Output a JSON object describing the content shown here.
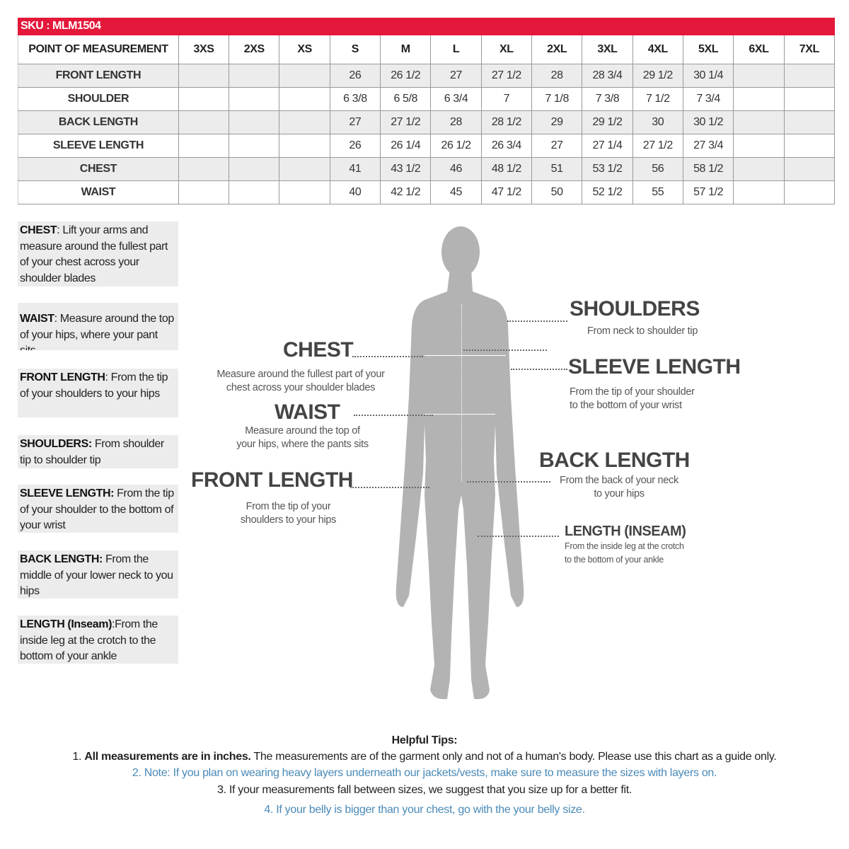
{
  "sku": "SKU : MLM1504",
  "table": {
    "header": [
      "POINT OF MEASUREMENT",
      "3XS",
      "2XS",
      "XS",
      "S",
      "M",
      "L",
      "XL",
      "2XL",
      "3XL",
      "4XL",
      "5XL",
      "6XL",
      "7XL"
    ],
    "rows": [
      [
        "FRONT LENGTH",
        "",
        "",
        "",
        "26",
        "26 1/2",
        "27",
        "27 1/2",
        "28",
        "28 3/4",
        "29 1/2",
        "30 1/4",
        "",
        ""
      ],
      [
        "SHOULDER",
        "",
        "",
        "",
        "6 3/8",
        "6 5/8",
        "6 3/4",
        "7",
        "7 1/8",
        "7 3/8",
        "7 1/2",
        "7 3/4",
        "",
        ""
      ],
      [
        "BACK LENGTH",
        "",
        "",
        "",
        "27",
        "27 1/2",
        "28",
        "28 1/2",
        "29",
        "29 1/2",
        "30",
        "30 1/2",
        "",
        ""
      ],
      [
        "SLEEVE LENGTH",
        "",
        "",
        "",
        "26",
        "26 1/4",
        "26 1/2",
        "26 3/4",
        "27",
        "27 1/4",
        "27 1/2",
        "27 3/4",
        "",
        ""
      ],
      [
        "CHEST",
        "",
        "",
        "",
        "41",
        "43 1/2",
        "46",
        "48 1/2",
        "51",
        "53 1/2",
        "56",
        "58 1/2",
        "",
        ""
      ],
      [
        "WAIST",
        "",
        "",
        "",
        "40",
        "42 1/2",
        "45",
        "47 1/2",
        "50",
        "52 1/2",
        "55",
        "57 1/2",
        "",
        ""
      ]
    ]
  },
  "notes": [
    {
      "label": "CHEST",
      "text": ": Lift your arms  and measure around the fullest part of your chest across your shoulder blades"
    },
    {
      "label": "WAIST",
      "text": ":  Measure around the top of your hips, where your pant sits"
    },
    {
      "label": "FRONT LENGTH",
      "text": ": From the tip of your shoulders to your hips"
    },
    {
      "label": "SHOULDERS:",
      "text": " From shoulder tip to shoulder tip"
    },
    {
      "label": "SLEEVE LENGTH:",
      "text": " From the tip of your shoulder to the bottom of your wrist"
    },
    {
      "label": "BACK LENGTH:",
      "text": " From the middle of your lower neck to you hips"
    },
    {
      "label": "LENGTH (Inseam)",
      "text": ":From the inside leg at the crotch to the bottom of your ankle"
    }
  ],
  "callouts": {
    "chest": {
      "title": "CHEST",
      "desc1": "Measure around the fullest part of your",
      "desc2": "chest across your shoulder blades"
    },
    "waist": {
      "title": "WAIST",
      "desc1": "Measure around the top of",
      "desc2": "your hips, where the pants sits"
    },
    "front": {
      "title": "FRONT LENGTH",
      "desc1": "From the tip of your",
      "desc2": "shoulders to your hips"
    },
    "shoulders": {
      "title": "SHOULDERS",
      "desc1": "From neck to shoulder tip"
    },
    "sleeve": {
      "title": "SLEEVE LENGTH",
      "desc1": "From the tip of your shoulder",
      "desc2": "to the bottom of your wrist"
    },
    "back": {
      "title": "BACK LENGTH",
      "desc1": "From the back of your neck",
      "desc2": "to your hips"
    },
    "inseam": {
      "title": "LENGTH (INSEAM)",
      "desc1": "From the inside leg at the crotch",
      "desc2": "to the bottom of your ankle"
    }
  },
  "tips": {
    "title": "Helpful Tips:",
    "t1_bold": "All measurements are in inches.",
    "t1_num": "1. ",
    "t1_rest": " The measurements are of the garment only and not of a human's body. Please use this chart as a guide only.",
    "t2": "2. Note: If you plan on wearing heavy layers underneath our jackets/vests, make sure to measure the sizes with layers on.",
    "t3": "3. If your measurements fall between sizes, we suggest that you size up for a better fit.",
    "t4": "4. If your belly is bigger than your chest, go with the your belly size."
  },
  "colors": {
    "header_red": "#e3183a",
    "tip_blue": "#4a8ab8",
    "silhouette": "#b3b3b3"
  }
}
